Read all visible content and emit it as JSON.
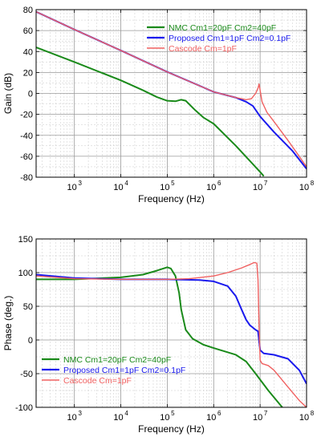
{
  "chart_data": [
    {
      "type": "line",
      "title": "",
      "xlabel": "Frequency (Hz)",
      "ylabel": "Gain (dB)",
      "xscale": "log",
      "xlim": [
        150,
        100000000
      ],
      "ylim": [
        -80,
        80
      ],
      "x_ticks": [
        {
          "v": 1000,
          "e": "3"
        },
        {
          "v": 10000,
          "e": "4"
        },
        {
          "v": 100000,
          "e": "5"
        },
        {
          "v": 1000000,
          "e": "6"
        },
        {
          "v": 10000000,
          "e": "7"
        },
        {
          "v": 100000000,
          "e": "8"
        }
      ],
      "y_ticks": [
        -80,
        -60,
        -40,
        -20,
        0,
        20,
        40,
        60,
        80
      ],
      "grid": true,
      "legend_position": "top-right",
      "series": [
        {
          "name": "NMC Cm1=20pF Cm2=40pF",
          "color": "#1a8a1a",
          "points": [
            [
              150,
              44
            ],
            [
              1000,
              30
            ],
            [
              10000,
              12.5
            ],
            [
              30000,
              3
            ],
            [
              60000,
              -3.5
            ],
            [
              100000,
              -7
            ],
            [
              150000,
              -7.5
            ],
            [
              200000,
              -6
            ],
            [
              250000,
              -7
            ],
            [
              400000,
              -16
            ],
            [
              600000,
              -23
            ],
            [
              1000000,
              -29
            ],
            [
              3000000,
              -50
            ],
            [
              10000000,
              -75
            ],
            [
              12000000,
              -79
            ]
          ]
        },
        {
          "name": "Proposed Cm1=1pF Cm2=0.1pF",
          "color": "#1a1aee",
          "points": [
            [
              150,
              78
            ],
            [
              1000,
              61
            ],
            [
              10000,
              41
            ],
            [
              100000,
              20.5
            ],
            [
              1000000,
              1.5
            ],
            [
              3000000,
              -4
            ],
            [
              5000000,
              -8
            ],
            [
              7000000,
              -12
            ],
            [
              10000000,
              -22
            ],
            [
              20000000,
              -37
            ],
            [
              50000000,
              -55
            ],
            [
              100000000,
              -72
            ]
          ]
        },
        {
          "name": "Cascode Cm=1pF",
          "color": "#f06060",
          "points": [
            [
              150,
              78
            ],
            [
              1000,
              61
            ],
            [
              10000,
              41
            ],
            [
              100000,
              20.5
            ],
            [
              1000000,
              1.5
            ],
            [
              3000000,
              -4
            ],
            [
              5000000,
              -6
            ],
            [
              6500000,
              -5
            ],
            [
              8000000,
              0
            ],
            [
              9000000,
              5
            ],
            [
              9500000,
              9
            ],
            [
              10000000,
              3
            ],
            [
              11000000,
              -8
            ],
            [
              14000000,
              -18
            ],
            [
              20000000,
              -27
            ],
            [
              40000000,
              -45
            ],
            [
              100000000,
              -70
            ]
          ]
        }
      ]
    },
    {
      "type": "line",
      "title": "",
      "xlabel": "Frequency (Hz)",
      "ylabel": "Phase (deg.)",
      "xscale": "log",
      "xlim": [
        150,
        100000000
      ],
      "ylim": [
        -100,
        150
      ],
      "x_ticks": [
        {
          "v": 1000,
          "e": "3"
        },
        {
          "v": 10000,
          "e": "4"
        },
        {
          "v": 100000,
          "e": "5"
        },
        {
          "v": 1000000,
          "e": "6"
        },
        {
          "v": 10000000,
          "e": "7"
        },
        {
          "v": 100000000,
          "e": "8"
        }
      ],
      "y_ticks": [
        -100,
        -50,
        0,
        50,
        100,
        150
      ],
      "grid": true,
      "legend_position": "bottom-left",
      "series": [
        {
          "name": "NMC Cm1=20pF Cm2=40pF",
          "color": "#1a8a1a",
          "points": [
            [
              150,
              90
            ],
            [
              1000,
              90
            ],
            [
              10000,
              93
            ],
            [
              30000,
              97
            ],
            [
              60000,
              103
            ],
            [
              100000,
              108
            ],
            [
              120000,
              106
            ],
            [
              150000,
              95
            ],
            [
              180000,
              70
            ],
            [
              200000,
              45
            ],
            [
              250000,
              15
            ],
            [
              350000,
              2
            ],
            [
              600000,
              -7
            ],
            [
              1000000,
              -12
            ],
            [
              3000000,
              -22
            ],
            [
              5000000,
              -32
            ],
            [
              8000000,
              -50
            ],
            [
              15000000,
              -75
            ],
            [
              30000000,
              -100
            ]
          ]
        },
        {
          "name": "Proposed Cm1=1pF Cm2=0.1pF",
          "color": "#1a1aee",
          "points": [
            [
              150,
              97
            ],
            [
              1000,
              92
            ],
            [
              10000,
              90
            ],
            [
              100000,
              90
            ],
            [
              500000,
              89
            ],
            [
              1000000,
              87
            ],
            [
              2000000,
              80
            ],
            [
              3000000,
              65
            ],
            [
              4000000,
              45
            ],
            [
              5000000,
              30
            ],
            [
              6000000,
              22
            ],
            [
              8000000,
              15
            ],
            [
              9000000,
              13
            ],
            [
              10000000,
              -15
            ],
            [
              12000000,
              -20
            ],
            [
              20000000,
              -22
            ],
            [
              40000000,
              -28
            ],
            [
              70000000,
              -45
            ],
            [
              100000000,
              -65
            ]
          ]
        },
        {
          "name": "Cascode Cm=1pF",
          "color": "#f06060",
          "points": [
            [
              150,
              95
            ],
            [
              1000,
              91
            ],
            [
              10000,
              90
            ],
            [
              100000,
              90
            ],
            [
              300000,
              91
            ],
            [
              1000000,
              95
            ],
            [
              2000000,
              100
            ],
            [
              4000000,
              107
            ],
            [
              6000000,
              112
            ],
            [
              7500000,
              115
            ],
            [
              8500000,
              114
            ],
            [
              9000000,
              90
            ],
            [
              9500000,
              20
            ],
            [
              10000000,
              -30
            ],
            [
              11000000,
              -35
            ],
            [
              15000000,
              -38
            ],
            [
              20000000,
              -45
            ],
            [
              40000000,
              -70
            ],
            [
              70000000,
              -90
            ],
            [
              100000000,
              -100
            ]
          ]
        }
      ]
    }
  ]
}
